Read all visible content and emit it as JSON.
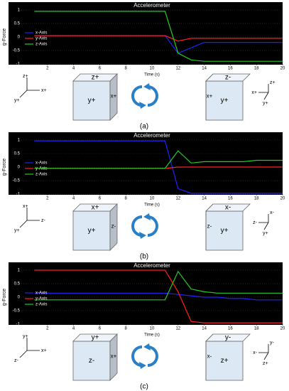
{
  "chart_data": [
    {
      "type": "line",
      "title": "Accelerometer",
      "xlabel": "Time (s)",
      "ylabel": "g-Force",
      "xlim": [
        0,
        20
      ],
      "xticks": [
        2,
        4,
        6,
        8,
        10,
        12,
        14,
        16,
        18,
        20
      ],
      "ylim": [
        -1,
        1
      ],
      "yticks": [
        -1,
        -0.5,
        0,
        0.5,
        1
      ],
      "legend": "left",
      "x": [
        1,
        2,
        3,
        4,
        5,
        6,
        7,
        8,
        9,
        10,
        11,
        12,
        13,
        14,
        15,
        16,
        17,
        18,
        19,
        20
      ],
      "series": [
        {
          "name": "x-Axis",
          "color": "#2222ff",
          "values": [
            0.05,
            0.05,
            0.05,
            0.05,
            0.05,
            0.05,
            0.05,
            0.05,
            0.05,
            0.05,
            0.05,
            -0.6,
            -0.4,
            -0.2,
            -0.2,
            -0.2,
            -0.2,
            -0.2,
            -0.2,
            -0.2
          ]
        },
        {
          "name": "y-Axis",
          "color": "#ff2020",
          "values": [
            0.05,
            0.05,
            0.05,
            0.05,
            0.05,
            0.05,
            0.05,
            0.05,
            0.05,
            0.05,
            0.05,
            -0.15,
            -0.05,
            -0.05,
            -0.05,
            -0.05,
            -0.05,
            -0.05,
            -0.05,
            -0.05
          ]
        },
        {
          "name": "z-Axis",
          "color": "#22cc22",
          "values": [
            0.95,
            0.95,
            0.95,
            0.95,
            0.95,
            0.95,
            0.95,
            0.95,
            0.95,
            0.95,
            0.95,
            -0.6,
            -0.85,
            -0.9,
            -0.9,
            -0.9,
            -0.9,
            -0.9,
            -0.9,
            -0.9
          ]
        }
      ]
    },
    {
      "type": "line",
      "title": "Accelerometer",
      "xlabel": "Time (s)",
      "ylabel": "g-Force",
      "xlim": [
        0,
        20
      ],
      "xticks": [
        2,
        4,
        6,
        8,
        10,
        12,
        14,
        16,
        18,
        20
      ],
      "ylim": [
        -1,
        1
      ],
      "yticks": [
        -1,
        -0.5,
        0,
        0.5,
        1
      ],
      "legend": "left",
      "x": [
        1,
        2,
        3,
        4,
        5,
        6,
        7,
        8,
        9,
        10,
        11,
        12,
        13,
        14,
        15,
        16,
        17,
        18,
        19,
        20
      ],
      "series": [
        {
          "name": "x-Axis",
          "color": "#2222ff",
          "values": [
            0.97,
            0.97,
            0.97,
            0.97,
            0.97,
            0.97,
            0.97,
            0.97,
            0.97,
            0.97,
            0.97,
            -0.8,
            -0.97,
            -0.97,
            -0.97,
            -0.97,
            -0.97,
            -0.97,
            -0.97,
            -0.97
          ]
        },
        {
          "name": "y-Axis",
          "color": "#ff2020",
          "values": [
            -0.05,
            -0.05,
            -0.05,
            -0.05,
            -0.05,
            -0.05,
            -0.05,
            -0.05,
            -0.05,
            -0.05,
            -0.05,
            0,
            0,
            0,
            0,
            0,
            0,
            0,
            0,
            0
          ]
        },
        {
          "name": "z-Axis",
          "color": "#22cc22",
          "values": [
            -0.05,
            -0.05,
            -0.05,
            -0.05,
            -0.05,
            -0.05,
            -0.05,
            -0.05,
            -0.05,
            -0.05,
            -0.05,
            0.6,
            0.15,
            0.2,
            0.2,
            0.2,
            0.2,
            0.25,
            0.25,
            0.25
          ]
        }
      ]
    },
    {
      "type": "line",
      "title": "Accelerometer",
      "xlabel": "Time (s)",
      "ylabel": "g-Force",
      "xlim": [
        0,
        20
      ],
      "xticks": [
        2,
        4,
        6,
        8,
        10,
        12,
        14,
        16,
        18,
        20
      ],
      "ylim": [
        -1,
        1
      ],
      "yticks": [
        -1,
        -0.5,
        0,
        0.5,
        1
      ],
      "legend": "left",
      "x": [
        1,
        2,
        3,
        4,
        5,
        6,
        7,
        8,
        9,
        10,
        11,
        12,
        13,
        14,
        15,
        16,
        17,
        18,
        19,
        20
      ],
      "series": [
        {
          "name": "x-Axis",
          "color": "#2222ff",
          "values": [
            0.15,
            0.15,
            0.15,
            0.15,
            0.15,
            0.15,
            0.15,
            0.15,
            0.15,
            0.15,
            0.15,
            0.1,
            0.05,
            0,
            0,
            -0.05,
            -0.05,
            -0.1,
            -0.1,
            -0.1
          ]
        },
        {
          "name": "y-Axis",
          "color": "#ff2020",
          "values": [
            1,
            1,
            1,
            1,
            1,
            1,
            1,
            1,
            1,
            1,
            1,
            0.2,
            -0.9,
            -0.95,
            -0.95,
            -0.95,
            -0.95,
            -0.95,
            -0.95,
            -0.95
          ]
        },
        {
          "name": "z-Axis",
          "color": "#22cc22",
          "values": [
            -0.1,
            -0.1,
            -0.1,
            -0.1,
            -0.1,
            -0.1,
            -0.1,
            -0.1,
            -0.1,
            -0.1,
            -0.1,
            0.95,
            0.3,
            0.2,
            0.15,
            0.15,
            0.15,
            0.15,
            0.15,
            0.15
          ]
        }
      ]
    }
  ],
  "panels": [
    {
      "caption": "(a)",
      "left_axes": [
        "z+",
        "x+",
        "y+"
      ],
      "cube1": {
        "top": "z+",
        "front": "y+",
        "side": "x+"
      },
      "cube2": {
        "top": "z-",
        "front": "y+",
        "side": "x+"
      },
      "right_axes": [
        "x+",
        "z+",
        "y+"
      ]
    },
    {
      "caption": "(b)",
      "left_axes": [
        "x+",
        "z-",
        "y+"
      ],
      "cube1": {
        "top": "x+",
        "front": "y+",
        "side": "z-"
      },
      "cube2": {
        "top": "x-",
        "front": "y+",
        "side": "z-"
      },
      "right_axes": [
        "z-",
        "x-",
        "y+"
      ]
    },
    {
      "caption": "(c)",
      "left_axes": [
        "y+",
        "x+",
        "z-"
      ],
      "cube1": {
        "top": "y+",
        "front": "z-",
        "side": "x+"
      },
      "cube2": {
        "top": "y-",
        "front": "z+",
        "side": "x-"
      },
      "right_axes": [
        "x-",
        "y-",
        "z+"
      ]
    }
  ]
}
